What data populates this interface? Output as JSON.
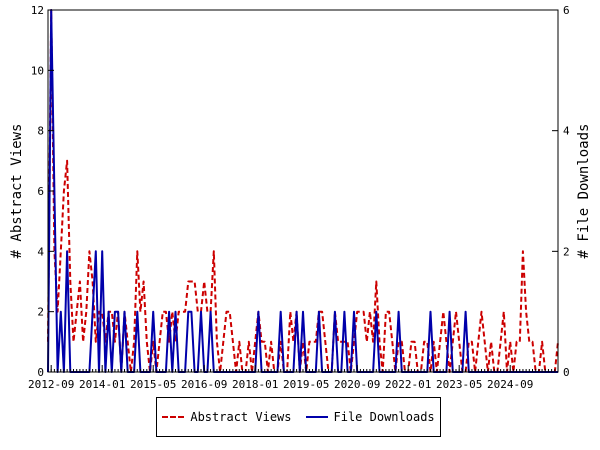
{
  "chart_data": {
    "type": "line",
    "ylabel": "# Abstract Views",
    "y2label": "# File Downloads",
    "ylim": [
      0,
      12
    ],
    "y2lim": [
      0,
      6
    ],
    "yticks": [
      0,
      2,
      4,
      6,
      8,
      10,
      12
    ],
    "y2ticks": [
      0,
      2,
      4,
      6
    ],
    "xlim": [
      "2012-08",
      "2025-12"
    ],
    "xticks": [
      "2012-09",
      "2014-01",
      "2015-05",
      "2016-09",
      "2018-01",
      "2019-05",
      "2020-09",
      "2022-01",
      "2023-05",
      "2024-09"
    ],
    "grid": false,
    "legend_placement": "bottom",
    "x": [
      "2012-08",
      "2012-09",
      "2012-10",
      "2012-11",
      "2012-12",
      "2013-01",
      "2013-02",
      "2013-03",
      "2013-04",
      "2013-05",
      "2013-06",
      "2013-07",
      "2013-08",
      "2013-09",
      "2013-10",
      "2013-11",
      "2013-12",
      "2014-01",
      "2014-02",
      "2014-03",
      "2014-04",
      "2014-05",
      "2014-06",
      "2014-07",
      "2014-08",
      "2014-09",
      "2014-10",
      "2014-11",
      "2014-12",
      "2015-01",
      "2015-02",
      "2015-03",
      "2015-04",
      "2015-05",
      "2015-06",
      "2015-07",
      "2015-08",
      "2015-09",
      "2015-10",
      "2015-11",
      "2015-12",
      "2016-01",
      "2016-02",
      "2016-03",
      "2016-04",
      "2016-05",
      "2016-06",
      "2016-07",
      "2016-08",
      "2016-09",
      "2016-10",
      "2016-11",
      "2016-12",
      "2017-01",
      "2017-02",
      "2017-03",
      "2017-04",
      "2017-05",
      "2017-06",
      "2017-07",
      "2017-08",
      "2017-09",
      "2017-10",
      "2017-11",
      "2017-12",
      "2018-01",
      "2018-02",
      "2018-03",
      "2018-04",
      "2018-05",
      "2018-06",
      "2018-07",
      "2018-08",
      "2018-09",
      "2018-10",
      "2018-11",
      "2018-12",
      "2019-01",
      "2019-02",
      "2019-03",
      "2019-04",
      "2019-05",
      "2019-06",
      "2019-07",
      "2019-08",
      "2019-09",
      "2019-10",
      "2019-11",
      "2019-12",
      "2020-01",
      "2020-02",
      "2020-03",
      "2020-04",
      "2020-05",
      "2020-06",
      "2020-07",
      "2020-08",
      "2020-09",
      "2020-10",
      "2020-11",
      "2020-12",
      "2021-01",
      "2021-02",
      "2021-03",
      "2021-04",
      "2021-05",
      "2021-06",
      "2021-07",
      "2021-08",
      "2021-09",
      "2021-10",
      "2021-11",
      "2021-12",
      "2022-01",
      "2022-02",
      "2022-03",
      "2022-04",
      "2022-05",
      "2022-06",
      "2022-07",
      "2022-08",
      "2022-09",
      "2022-10",
      "2022-11",
      "2022-12",
      "2023-01",
      "2023-02",
      "2023-03",
      "2023-04",
      "2023-05",
      "2023-06",
      "2023-07",
      "2023-08",
      "2023-09",
      "2023-10",
      "2023-11",
      "2023-12",
      "2024-01",
      "2024-02",
      "2024-03",
      "2024-04",
      "2024-05",
      "2024-06",
      "2024-07",
      "2024-08",
      "2024-09",
      "2024-10",
      "2024-11",
      "2024-12",
      "2025-01",
      "2025-02",
      "2025-03",
      "2025-04",
      "2025-05",
      "2025-06",
      "2025-07",
      "2025-08",
      "2025-09",
      "2025-10",
      "2025-11",
      "2025-12"
    ],
    "series": [
      {
        "name": "Abstract Views",
        "axis": "left",
        "color": "#cc0000",
        "dash": "dashed",
        "values": [
          1,
          12,
          4,
          2,
          4,
          6,
          7,
          3,
          1,
          2,
          3,
          1,
          2,
          4,
          3,
          1,
          2,
          2,
          1,
          2,
          2,
          1,
          2,
          0,
          2,
          1,
          0,
          1,
          4,
          2,
          3,
          1,
          0,
          1,
          0,
          1,
          2,
          2,
          1,
          2,
          1,
          2,
          2,
          2,
          3,
          3,
          3,
          2,
          2,
          3,
          2,
          2,
          4,
          1,
          0,
          1,
          2,
          2,
          1,
          0,
          1,
          0,
          0,
          1,
          0,
          1,
          2,
          1,
          1,
          0,
          1,
          0,
          0,
          1,
          0,
          0,
          2,
          1,
          2,
          0,
          1,
          0,
          1,
          1,
          1,
          2,
          2,
          1,
          0,
          0,
          2,
          1,
          1,
          1,
          1,
          0,
          1,
          2,
          2,
          2,
          1,
          2,
          1,
          3,
          1,
          0,
          2,
          2,
          1,
          0,
          1,
          1,
          0,
          0,
          1,
          1,
          0,
          0,
          1,
          1,
          0,
          1,
          0,
          1,
          2,
          1,
          0,
          1,
          2,
          1,
          0,
          0,
          1,
          1,
          0,
          1,
          2,
          1,
          0,
          1,
          0,
          0,
          1,
          2,
          0,
          1,
          0,
          1,
          1,
          4,
          2,
          1,
          1,
          0,
          0,
          1,
          0,
          0,
          0,
          0,
          1
        ]
      },
      {
        "name": "File Downloads",
        "axis": "right",
        "color": "#0000aa",
        "dash": "solid",
        "values": [
          0,
          6,
          3,
          0,
          1,
          0,
          2,
          0,
          0,
          0,
          0,
          0,
          0,
          0,
          1,
          2,
          0,
          2,
          0,
          1,
          0,
          1,
          1,
          0,
          1,
          0,
          0,
          0,
          1,
          0,
          0,
          0,
          0,
          1,
          0,
          0,
          0,
          0,
          1,
          0,
          1,
          0,
          0,
          0,
          1,
          1,
          0,
          0,
          1,
          0,
          0,
          1,
          0,
          0,
          0,
          0,
          0,
          0,
          0,
          0,
          0,
          0,
          0,
          0,
          0,
          0,
          1,
          0,
          0,
          0,
          0,
          0,
          0,
          1,
          0,
          0,
          0,
          0,
          1,
          0,
          1,
          0,
          0,
          0,
          0,
          1,
          0,
          0,
          0,
          0,
          1,
          0,
          0,
          1,
          0,
          0,
          1,
          0,
          0,
          0,
          0,
          0,
          0,
          1,
          0,
          0,
          0,
          0,
          0,
          0,
          1,
          0,
          0,
          0,
          0,
          0,
          0,
          0,
          0,
          0,
          1,
          0,
          0,
          0,
          0,
          0,
          1,
          0,
          0,
          0,
          0,
          1,
          0,
          0,
          0,
          0,
          0,
          0,
          0,
          0,
          0,
          0,
          0,
          0,
          0,
          0,
          0,
          0,
          0,
          0,
          0,
          0,
          0,
          0,
          0,
          0,
          0,
          0,
          0,
          0,
          0
        ]
      }
    ]
  }
}
